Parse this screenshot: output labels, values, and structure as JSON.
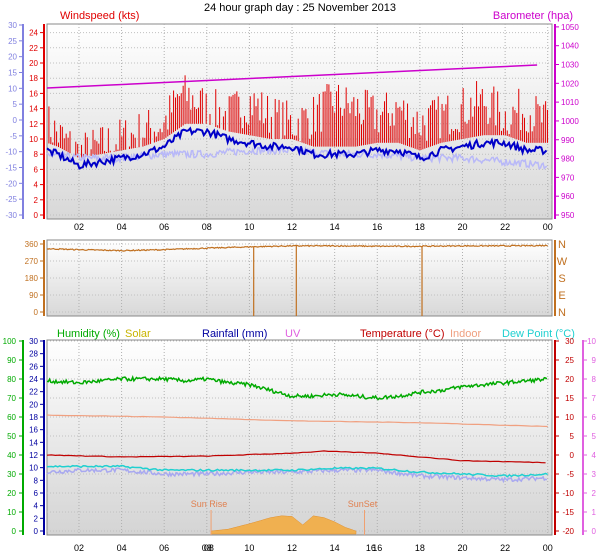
{
  "title": "24 hour graph day : 25 November 2013",
  "time_axis": {
    "labels": [
      "02",
      "04",
      "06",
      "08",
      "10",
      "12",
      "14",
      "16",
      "18",
      "20",
      "22",
      "00"
    ],
    "label_hours": [
      2,
      4,
      6,
      8,
      10,
      12,
      14,
      16,
      18,
      20,
      22,
      24
    ],
    "hour_range": [
      0.5,
      24.2
    ]
  },
  "colors": {
    "wind": "#e00000",
    "wind_avg": "#0000c8",
    "gust_dir": "#b8b8f8",
    "barometer": "#cc00cc",
    "direction": "#c07020",
    "humidity": "#00aa00",
    "solar": "#c8b400",
    "rainfall": "#0000a0",
    "uv": "#e060e0",
    "temperature": "#c00000",
    "indoor": "#f0a080",
    "dewpoint": "#20d0d0",
    "sun_area": "#f0b050",
    "plot_bg": "#e6e6e6"
  },
  "chart_data": [
    {
      "type": "line",
      "id": "wind-barometer",
      "left_label": "Windspeed (kts)",
      "right_label": "Barometer (hpa)",
      "left_ticks": [
        0,
        2,
        4,
        6,
        8,
        10,
        12,
        14,
        16,
        18,
        20,
        22,
        24
      ],
      "outer_left_ticks": [
        -30,
        -25,
        -20,
        -15,
        -10,
        -5,
        0,
        5,
        10,
        15,
        20,
        25,
        30
      ],
      "right_ticks": [
        950,
        960,
        970,
        980,
        990,
        1000,
        1010,
        1020,
        1030,
        1040,
        1050
      ],
      "ylim": [
        0,
        25
      ],
      "right_ylim": [
        950,
        1051
      ],
      "series": [
        {
          "key": "wind_peak",
          "x": [
            0.5,
            2,
            3,
            4,
            5,
            6,
            6.8,
            7.5,
            8,
            9,
            10,
            10.5,
            11,
            12,
            13,
            14,
            15,
            16,
            17,
            18,
            19,
            20,
            21,
            22,
            23,
            24
          ],
          "values": [
            12,
            8,
            9,
            10,
            11,
            12,
            16,
            15,
            14,
            13,
            15,
            14,
            13,
            12,
            13,
            15,
            14,
            13,
            14,
            12,
            13,
            14,
            15,
            13,
            14,
            12
          ]
        },
        {
          "key": "wind_avg",
          "x": [
            0.5,
            1,
            2,
            3,
            4,
            5,
            6,
            7,
            8,
            9,
            10,
            11,
            12,
            13,
            14,
            15,
            16,
            17,
            18,
            19,
            20,
            21,
            22,
            23,
            24
          ],
          "values": [
            8.5,
            8,
            6.5,
            7,
            7.5,
            8,
            9,
            11,
            11,
            10,
            9.5,
            9,
            9,
            8,
            8,
            8,
            8.5,
            8.5,
            7.5,
            8.5,
            9,
            9.5,
            9.5,
            8.5,
            8.5
          ]
        },
        {
          "key": "gust_dir",
          "x": [
            0.5,
            2,
            4,
            6,
            8,
            10,
            12,
            14,
            16,
            18,
            20,
            22,
            24
          ],
          "values": [
            8,
            7.5,
            7.5,
            8,
            8,
            8.5,
            8.5,
            8,
            8,
            7.5,
            7.5,
            7,
            6.5
          ]
        },
        {
          "key": "barometer",
          "x": [
            0.5,
            24
          ],
          "values": [
            1017.5,
            1030
          ]
        }
      ]
    },
    {
      "type": "line",
      "id": "wind-direction",
      "left_ticks": [
        0,
        90,
        180,
        270,
        360
      ],
      "right_labels": [
        "N",
        "W",
        "S",
        "E",
        "N"
      ],
      "ylim": [
        0,
        360
      ],
      "series": [
        {
          "key": "direction",
          "x": [
            0.5,
            2,
            4,
            6,
            8,
            10,
            12,
            14,
            16,
            18,
            20,
            22,
            24
          ],
          "values": [
            335,
            330,
            325,
            330,
            338,
            345,
            350,
            350,
            348,
            348,
            350,
            350,
            352
          ]
        }
      ],
      "drops": [
        10.2,
        12.2,
        18.1
      ]
    },
    {
      "type": "line",
      "id": "temp-humidity",
      "legend": [
        {
          "text": "Humidity (%)",
          "color": "#00aa00"
        },
        {
          "text": "Solar",
          "color": "#c8b400"
        },
        {
          "text": "Rainfall (mm)",
          "color": "#0000a0"
        },
        {
          "text": "UV",
          "color": "#e060e0"
        },
        {
          "text": "Temperature (°C)",
          "color": "#c00000"
        },
        {
          "text": "Indoor",
          "color": "#f0a080"
        },
        {
          "text": "Dew Point (°C)",
          "color": "#20d0d0"
        }
      ],
      "humidity_ticks": [
        0,
        10,
        20,
        30,
        40,
        50,
        60,
        70,
        80,
        90,
        100
      ],
      "rainfall_ticks": [
        0,
        2,
        4,
        6,
        8,
        10,
        12,
        14,
        16,
        18,
        20,
        22,
        24,
        26,
        28,
        30
      ],
      "temp_ticks": [
        -20,
        -15,
        -10,
        -5,
        0,
        5,
        10,
        15,
        20,
        25,
        30
      ],
      "uv_ticks": [
        0,
        1,
        2,
        3,
        4,
        5,
        6,
        7,
        8,
        9,
        10
      ],
      "temp_ylim": [
        -20,
        30
      ],
      "series": [
        {
          "key": "humidity",
          "unit": "%",
          "x": [
            0.5,
            2,
            4,
            6,
            7,
            8,
            9,
            10,
            11,
            12,
            13,
            14,
            15,
            16,
            17,
            18,
            19,
            20,
            21,
            22,
            23,
            24
          ],
          "values": [
            79,
            78,
            80,
            80,
            79,
            80,
            78,
            77,
            74,
            71,
            71,
            72,
            71,
            70,
            71,
            73,
            74,
            76,
            77,
            78,
            79,
            80
          ]
        },
        {
          "key": "indoor",
          "unit": "°C",
          "x": [
            0.5,
            6,
            12,
            18,
            24
          ],
          "values": [
            10.5,
            10,
            9,
            8.5,
            7.5
          ]
        },
        {
          "key": "temperature",
          "unit": "°C",
          "x": [
            0.5,
            4,
            8,
            12,
            13.5,
            16,
            18,
            20,
            24
          ],
          "values": [
            0,
            -0.5,
            -0.3,
            0.5,
            1,
            0.5,
            -0.5,
            -1.5,
            -2
          ]
        },
        {
          "key": "dewpoint",
          "unit": "°C",
          "x": [
            0.5,
            2,
            4,
            6,
            8,
            10,
            12,
            14,
            16,
            18,
            20,
            22,
            24
          ],
          "values": [
            -3,
            -3,
            -3,
            -4,
            -4,
            -4,
            -4,
            -3.5,
            -3.5,
            -4.5,
            -5,
            -5.5,
            -5
          ]
        },
        {
          "key": "gust_low",
          "unit": "°C",
          "x": [
            0.5,
            2,
            4,
            6,
            8,
            10,
            12,
            14,
            16,
            18,
            20,
            22,
            24
          ],
          "values": [
            -4.5,
            -4,
            -4,
            -5,
            -5,
            -4.5,
            -4.5,
            -4,
            -4,
            -5.5,
            -6,
            -6.5,
            -6
          ]
        },
        {
          "key": "solar_area",
          "unit": "",
          "x": [
            8.2,
            9,
            10,
            11,
            11.5,
            12,
            12.5,
            13,
            13.5,
            14,
            14.5,
            15
          ],
          "values": [
            0,
            0.3,
            1.2,
            2.2,
            2.5,
            2.4,
            1,
            2.5,
            2.2,
            1.5,
            0.6,
            0
          ]
        }
      ],
      "sun": {
        "rise_label": "Sun Rise",
        "set_label": "SunSet",
        "rise_hour": 8.2,
        "set_hour": 15.4
      },
      "cursor_labels": [
        {
          "text": "08 ",
          "hour": 8.1
        },
        {
          "text": "16",
          "hour": 15.7
        }
      ]
    }
  ]
}
